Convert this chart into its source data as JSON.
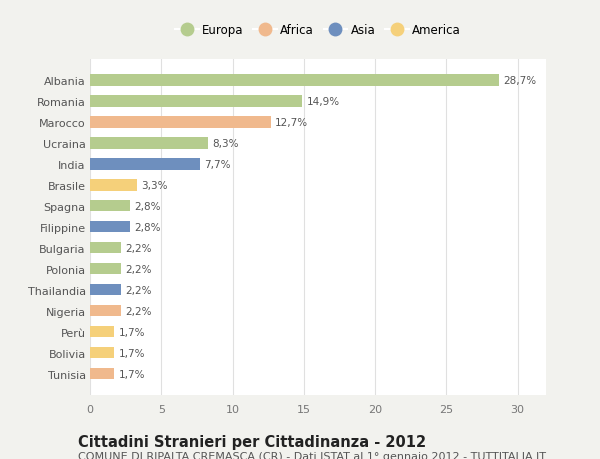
{
  "categories": [
    "Albania",
    "Romania",
    "Marocco",
    "Ucraina",
    "India",
    "Brasile",
    "Spagna",
    "Filippine",
    "Bulgaria",
    "Polonia",
    "Thailandia",
    "Nigeria",
    "Perù",
    "Bolivia",
    "Tunisia"
  ],
  "values": [
    28.7,
    14.9,
    12.7,
    8.3,
    7.7,
    3.3,
    2.8,
    2.8,
    2.2,
    2.2,
    2.2,
    2.2,
    1.7,
    1.7,
    1.7
  ],
  "labels": [
    "28,7%",
    "14,9%",
    "12,7%",
    "8,3%",
    "7,7%",
    "3,3%",
    "2,8%",
    "2,8%",
    "2,2%",
    "2,2%",
    "2,2%",
    "2,2%",
    "1,7%",
    "1,7%",
    "1,7%"
  ],
  "continents": [
    "Europa",
    "Europa",
    "Africa",
    "Europa",
    "Asia",
    "America",
    "Europa",
    "Asia",
    "Europa",
    "Europa",
    "Asia",
    "Africa",
    "America",
    "America",
    "Africa"
  ],
  "colors": {
    "Europa": "#b5cc8e",
    "Africa": "#f0b98d",
    "Asia": "#6e8fbe",
    "America": "#f5d07a"
  },
  "xlim": [
    0,
    32
  ],
  "xticks": [
    0,
    5,
    10,
    15,
    20,
    25,
    30
  ],
  "title": "Cittadini Stranieri per Cittadinanza - 2012",
  "subtitle": "COMUNE DI RIPALTA CREMASCA (CR) - Dati ISTAT al 1° gennaio 2012 - TUTTITALIA.IT",
  "background_color": "#f2f2ee",
  "bar_background": "#ffffff",
  "grid_color": "#e0e0e0",
  "title_fontsize": 10.5,
  "subtitle_fontsize": 8,
  "label_fontsize": 7.5,
  "tick_fontsize": 8,
  "legend_fontsize": 8.5
}
